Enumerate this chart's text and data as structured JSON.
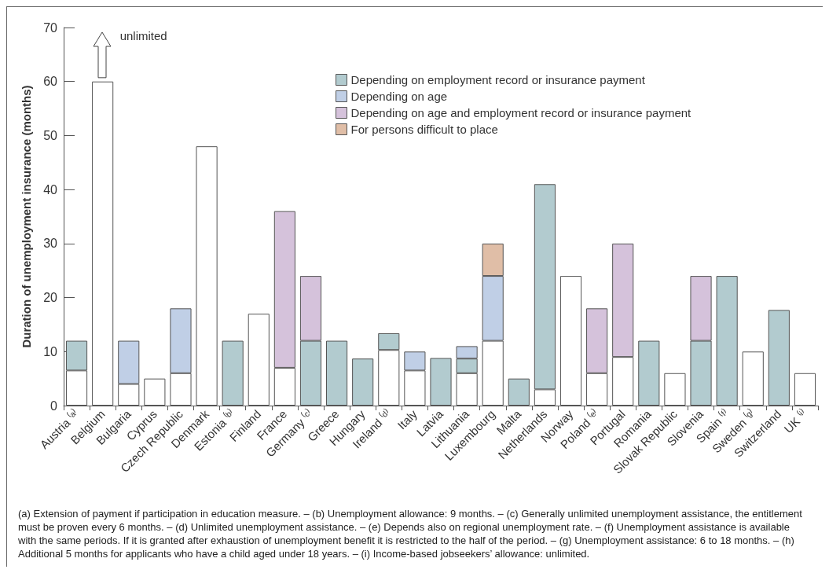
{
  "chart_data": {
    "type": "bar",
    "stacked": true,
    "ylabel": "Duration of unemployment insurance (months)",
    "categories": [
      "Austria ⁽ᵃ⁾",
      "Belgium",
      "Bulgaria",
      "Cyprus",
      "Czech Republic",
      "Denmark",
      "Estonia ⁽ᵇ⁾",
      "Finland",
      "France",
      "Germany ⁽ᶜ⁾",
      "Greece",
      "Hungary",
      "Ireland ⁽ᵈ⁾",
      "Italy",
      "Latvia",
      "Lithuania",
      "Luxembourg",
      "Malta",
      "Netherlands",
      "Norway",
      "Poland ⁽ᵉ⁾",
      "Portugal",
      "Romania",
      "Slovak Republic",
      "Slovenia",
      "Spain ⁽ᶠ⁾",
      "Sweden ⁽ᵍ⁾",
      "Switzerland",
      "UK ⁽ⁱ⁾"
    ],
    "series": [
      {
        "color": "#ffffff",
        "values": [
          6.5,
          60,
          4,
          5,
          6,
          48,
          null,
          17,
          7,
          null,
          null,
          null,
          10.3,
          6.5,
          null,
          6,
          12,
          null,
          3,
          24,
          6,
          9,
          null,
          6,
          null,
          null,
          10,
          null,
          6
        ]
      },
      {
        "name": "Depending on employment record or insurance payment",
        "color": "#b2cbcf",
        "values": [
          5.5,
          null,
          null,
          null,
          null,
          null,
          12,
          null,
          null,
          12,
          12,
          8.7,
          3.1,
          null,
          8.8,
          2.7,
          null,
          5,
          38,
          null,
          null,
          null,
          12,
          null,
          12,
          24,
          null,
          17.7,
          null
        ]
      },
      {
        "name": "Depending on age",
        "color": "#c0cfe6",
        "values": [
          null,
          null,
          8,
          null,
          12,
          null,
          null,
          null,
          null,
          null,
          null,
          null,
          null,
          3.5,
          null,
          2.3,
          12,
          null,
          null,
          null,
          null,
          null,
          null,
          null,
          null,
          null,
          null,
          null,
          null
        ]
      },
      {
        "name": "Depending on age and employment record or insurance payment",
        "color": "#d5c2db",
        "values": [
          null,
          null,
          null,
          null,
          null,
          null,
          null,
          null,
          29,
          12,
          null,
          null,
          null,
          null,
          null,
          null,
          null,
          null,
          null,
          null,
          12,
          21,
          null,
          null,
          12,
          null,
          null,
          null,
          null
        ]
      },
      {
        "name": "For persons difficult to place",
        "color": "#e0bea7",
        "values": [
          null,
          null,
          null,
          null,
          null,
          null,
          null,
          null,
          null,
          null,
          null,
          null,
          null,
          null,
          null,
          null,
          6,
          null,
          null,
          null,
          null,
          null,
          null,
          null,
          null,
          null,
          null,
          null,
          null
        ]
      }
    ],
    "ylim": [
      0,
      70
    ],
    "yticks": [
      0,
      10,
      20,
      30,
      40,
      50,
      60,
      70
    ],
    "grid": false,
    "legend": "top right",
    "annotations": [
      "unlimited",
      "(a) Extension of payment if participation in education measure. – (b) Unemployment allowance: 9 months. – (c) Generally unlimited unemployment assistance, the entitlement must be proven every 6 months. – (d) Unlimited unemployment assistance. – (e) Depends also on regional unemployment rate. – (f) Unemployment assistance is available with the same periods. If it is granted after exhaustion of unemployment benefit it is restricted to the half of the period. – (g) Unemployment assistance: 6 to 18 months. – (h) Additional 5 months for applicants who have a child aged under 18 years. – (i) Income-based jobseekers’ allowance: unlimited."
    ]
  }
}
